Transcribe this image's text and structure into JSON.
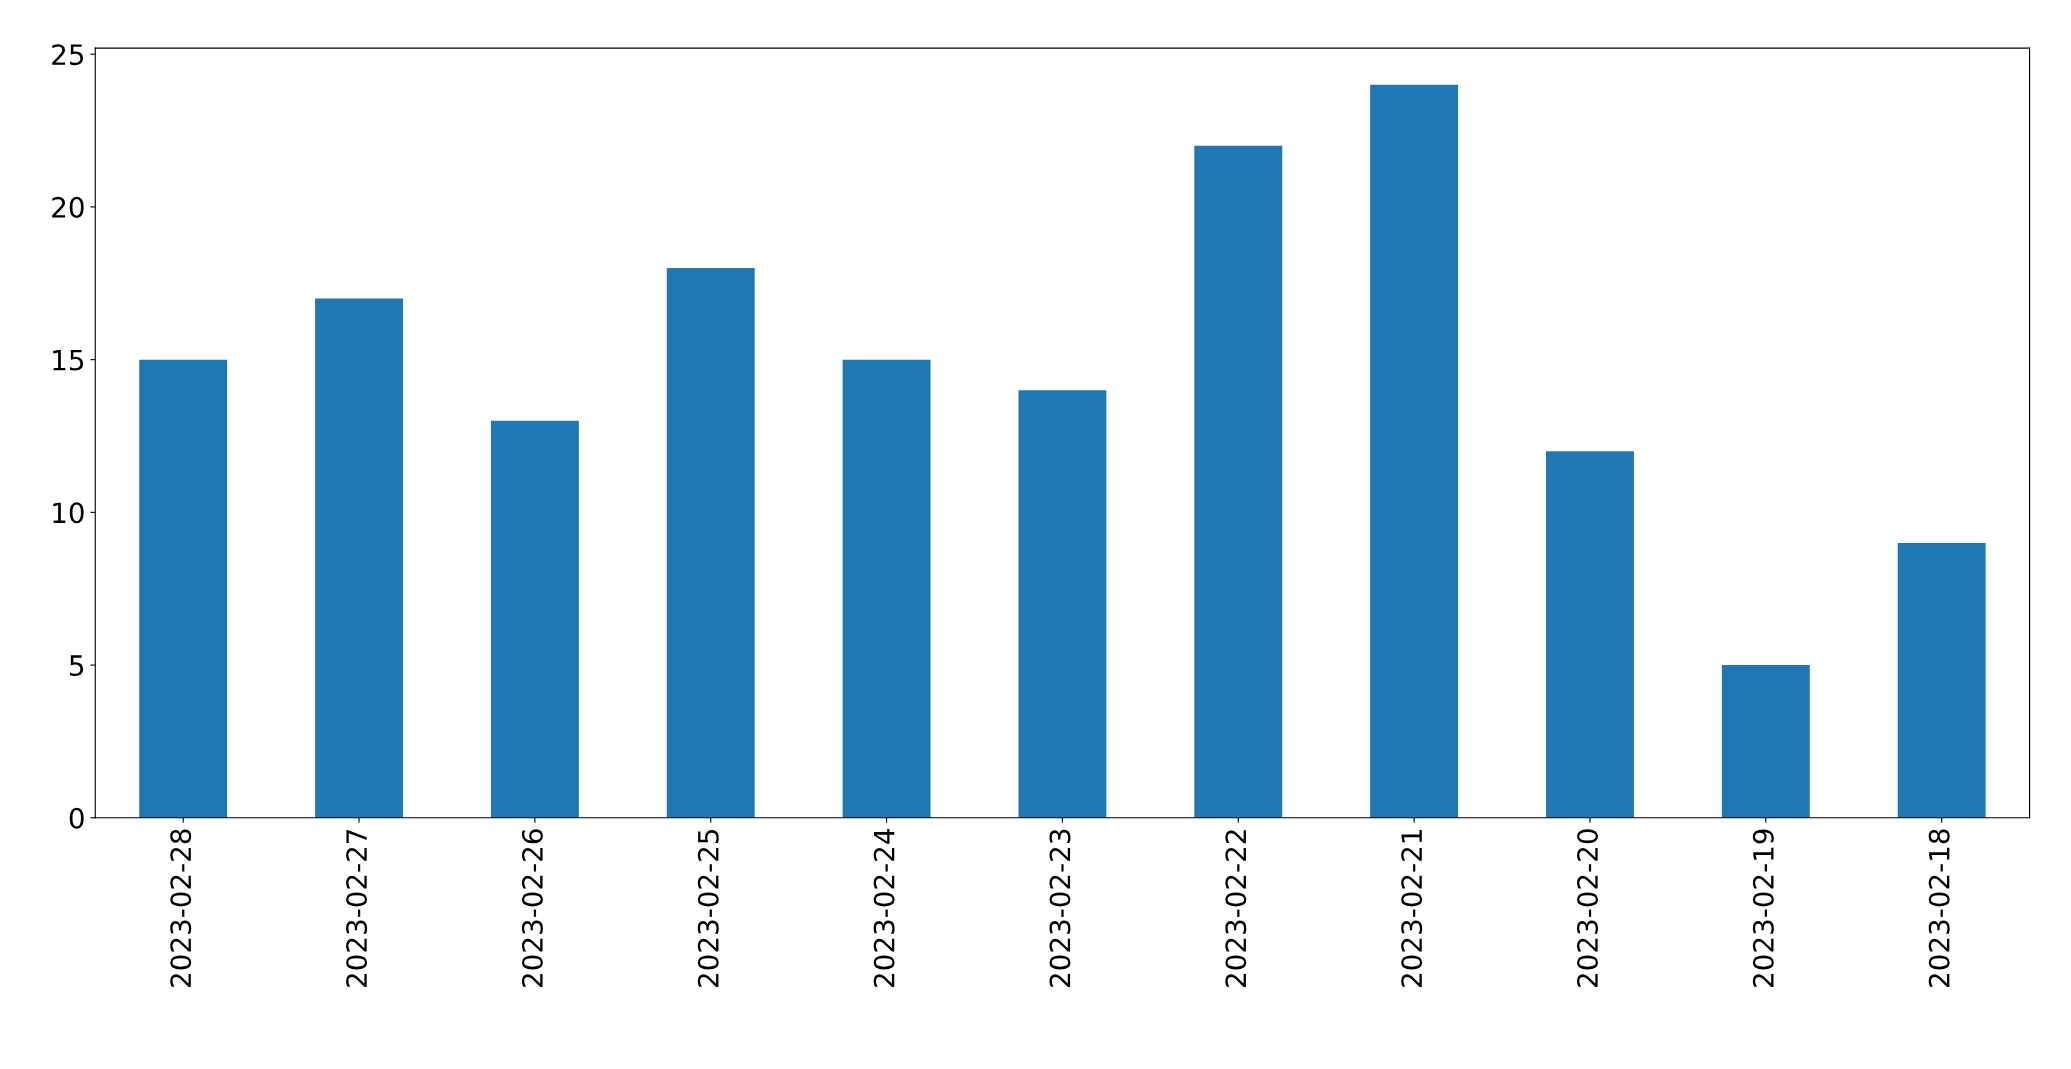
{
  "chart_data": {
    "type": "bar",
    "categories": [
      "2023-02-28",
      "2023-02-27",
      "2023-02-26",
      "2023-02-25",
      "2023-02-24",
      "2023-02-23",
      "2023-02-22",
      "2023-02-21",
      "2023-02-20",
      "2023-02-19",
      "2023-02-18"
    ],
    "values": [
      15,
      17,
      13,
      18,
      15,
      14,
      22,
      24,
      12,
      5,
      9
    ],
    "color": "#1f77b4",
    "ylim": [
      0,
      25.2
    ],
    "yticks": [
      0,
      5,
      10,
      15,
      20,
      25
    ],
    "grid": false,
    "legend": false
  }
}
